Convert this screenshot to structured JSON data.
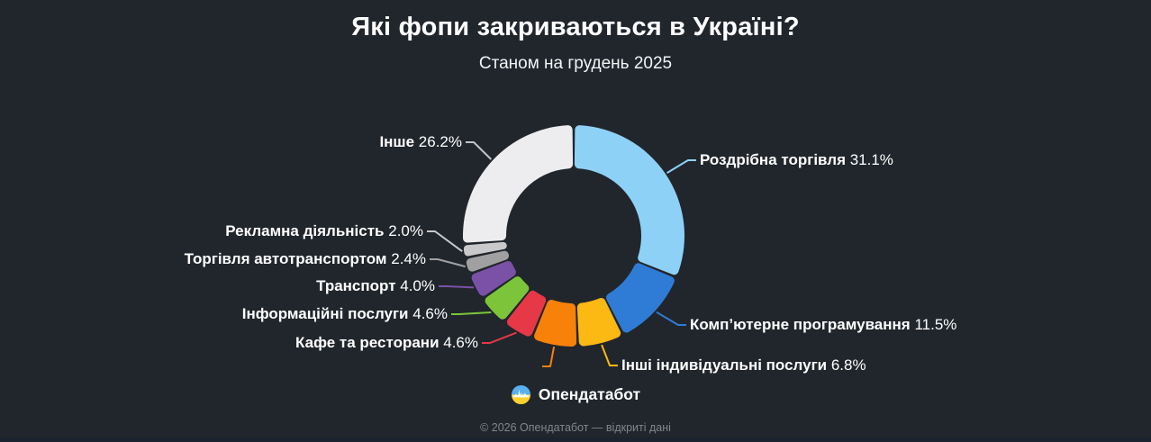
{
  "header": {
    "title": "Які фопи закриваються в Україні?",
    "subtitle": "Станом на грудень 2025"
  },
  "chart_data": {
    "type": "pie",
    "variant": "donut",
    "title": "Які фопи закриваються в Україні?",
    "subtitle": "Станом на грудень 2025",
    "legend_position": "callout-labels",
    "segments": [
      {
        "label": "Роздрібна торгівля",
        "value": 31.1,
        "display": "31.1%",
        "color": "#8ED1F7"
      },
      {
        "label": "Компʼютерне програмування",
        "value": 11.5,
        "display": "11.5%",
        "color": "#2F7CD6"
      },
      {
        "label": "Інші індивідуальні послуги",
        "value": 6.8,
        "display": "6.8%",
        "color": "#FCB813"
      },
      {
        "label": "",
        "value": 6.8,
        "display": "",
        "color": "#F8810A"
      },
      {
        "label": "Кафе та ресторани",
        "value": 4.6,
        "display": "4.6%",
        "color": "#E73848"
      },
      {
        "label": "Інформаційні послуги",
        "value": 4.6,
        "display": "4.6%",
        "color": "#7CC53A"
      },
      {
        "label": "Транспорт",
        "value": 4.0,
        "display": "4.0%",
        "color": "#7B51A7"
      },
      {
        "label": "Торгівля автотранспортом",
        "value": 2.4,
        "display": "2.4%",
        "color": "#A0A0A2"
      },
      {
        "label": "Рекламна діяльність",
        "value": 2.0,
        "display": "2.0%",
        "color": "#C9C9CB"
      },
      {
        "label": "Інше",
        "value": 26.2,
        "display": "26.2%",
        "color": "#EDEDEF"
      }
    ]
  },
  "footer": {
    "brand": "Опендатабот",
    "copyright": "© 2026 Опендатабот — відкриті дані"
  },
  "colors": {
    "background": "#21262C",
    "bottom_bar": "#1C2330",
    "label_text": "#FFFFFF",
    "muted_text": "#80868F",
    "logo_blue": "#58B0EF",
    "logo_yellow": "#FFD12F"
  }
}
